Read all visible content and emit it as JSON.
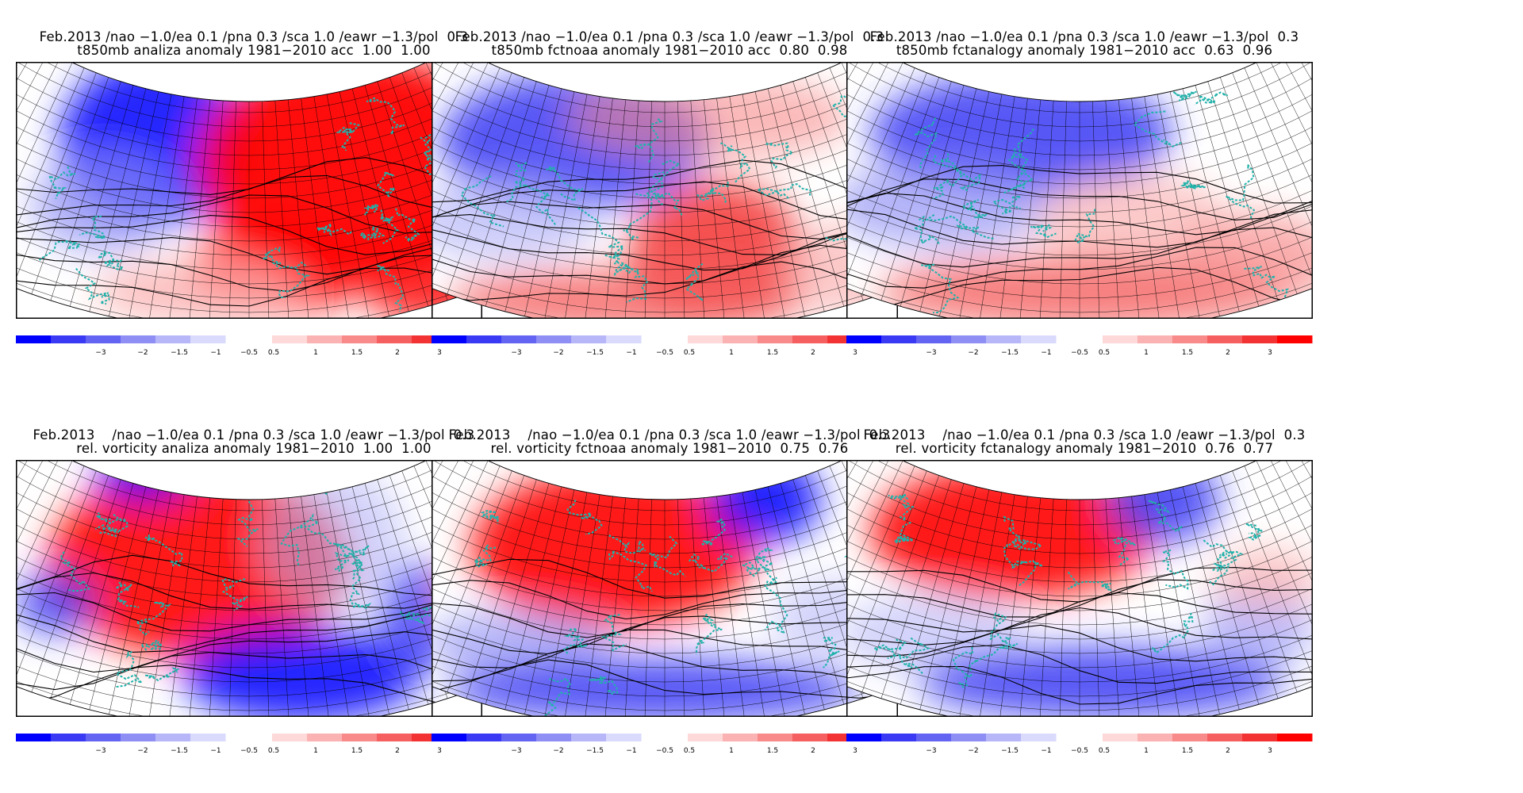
{
  "header_prefix": "Feb.2013",
  "indices_text": "/nao −1.0/ea 0.1 /pna 0.3 /sca 1.0 /eawr −1.3/pol  0.3",
  "panels": [
    {
      "title1": "Feb.2013 /nao −1.0/ea 0.1 /pna 0.3 /sca 1.0 /eawr −1.3/pol  0.3",
      "title2": "t850mb analiza anomaly 1981−2010 acc  1.00  1.00",
      "variable": "t850mb",
      "source": "analiza",
      "acc": [
        1.0,
        1.0
      ]
    },
    {
      "title1": "Feb.2013 /nao −1.0/ea 0.1 /pna 0.3 /sca 1.0 /eawr −1.3/pol  0.3",
      "title2": "t850mb fctnoaa anomaly 1981−2010 acc  0.80  0.98",
      "variable": "t850mb",
      "source": "fctnoaa",
      "acc": [
        0.8,
        0.98
      ]
    },
    {
      "title1": "Feb.2013 /nao −1.0/ea 0.1 /pna 0.3 /sca 1.0 /eawr −1.3/pol  0.3",
      "title2": "t850mb fctanalogy anomaly 1981−2010 acc  0.63  0.96",
      "variable": "t850mb",
      "source": "fctanalogy",
      "acc": [
        0.63,
        0.96
      ]
    },
    {
      "title1": "Feb.2013    /nao −1.0/ea 0.1 /pna 0.3 /sca 1.0 /eawr −1.3/pol  0.3",
      "title2": "rel. vorticity analiza anomaly 1981−2010  1.00  1.00",
      "variable": "rel. vorticity",
      "source": "analiza",
      "acc": [
        1.0,
        1.0
      ]
    },
    {
      "title1": "Feb.2013    /nao −1.0/ea 0.1 /pna 0.3 /sca 1.0 /eawr −1.3/pol  0.3",
      "title2": "rel. vorticity fctnoaa anomaly 1981−2010  0.75  0.76",
      "variable": "rel. vorticity",
      "source": "fctnoaa",
      "acc": [
        0.75,
        0.76
      ]
    },
    {
      "title1": "Feb.2013    /nao −1.0/ea 0.1 /pna 0.3 /sca 1.0 /eawr −1.3/pol  0.3",
      "title2": "rel. vorticity fctanalogy anomaly 1981−2010  0.76  0.77",
      "variable": "rel. vorticity",
      "source": "fctanalogy",
      "acc": [
        0.76,
        0.77
      ]
    }
  ],
  "colorbar": {
    "labels": [
      "−3",
      "−2",
      "−1.5",
      "−1",
      "−0.5",
      "0.5",
      "1",
      "1.5",
      "2",
      "3"
    ],
    "negative_colors": [
      "#0000ff",
      "#3a3af5",
      "#6464f2",
      "#8e8ef5",
      "#b6b6f8",
      "#dadafc"
    ],
    "positive_colors": [
      "#fdd9d9",
      "#fbb2b2",
      "#f88a8a",
      "#f55f5f",
      "#f33333",
      "#ff0000"
    ]
  },
  "colors": {
    "coastline": "#20b2aa",
    "contour": "#000000",
    "warm": "#ff0000",
    "cold": "#0000ff"
  }
}
